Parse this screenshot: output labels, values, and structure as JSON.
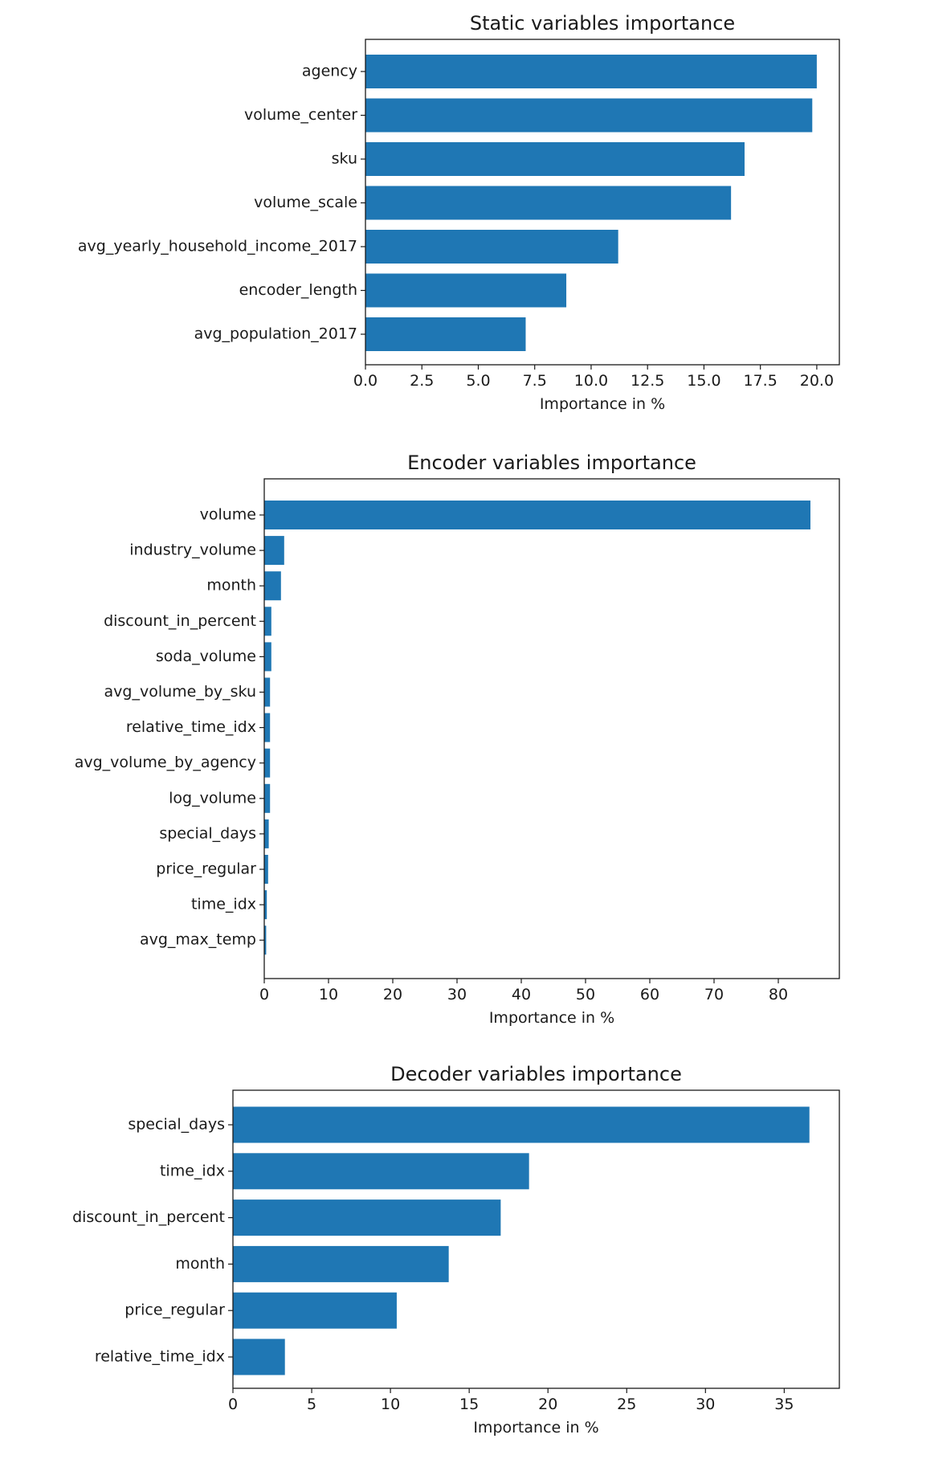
{
  "chart_data": [
    {
      "type": "bar",
      "orientation": "horizontal",
      "title": "Static variables importance",
      "xlabel": "Importance in %",
      "ylabel": "",
      "xlim": [
        0,
        21
      ],
      "xticks": [
        0,
        2.5,
        5,
        7.5,
        10,
        12.5,
        15,
        17.5,
        20
      ],
      "xtick_labels": [
        "0.0",
        "2.5",
        "5.0",
        "7.5",
        "10.0",
        "12.5",
        "15.0",
        "17.5",
        "20.0"
      ],
      "categories": [
        "agency",
        "volume_center",
        "sku",
        "volume_scale",
        "avg_yearly_household_income_2017",
        "encoder_length",
        "avg_population_2017"
      ],
      "values": [
        20.0,
        19.8,
        16.8,
        16.2,
        11.2,
        8.9,
        7.1
      ],
      "color": "#1f77b4",
      "grid": false
    },
    {
      "type": "bar",
      "orientation": "horizontal",
      "title": "Encoder variables importance",
      "xlabel": "Importance in %",
      "ylabel": "",
      "xlim": [
        0,
        89.5
      ],
      "xticks": [
        0,
        10,
        20,
        30,
        40,
        50,
        60,
        70,
        80
      ],
      "xtick_labels": [
        "0",
        "10",
        "20",
        "30",
        "40",
        "50",
        "60",
        "70",
        "80"
      ],
      "categories": [
        "volume",
        "industry_volume",
        "month",
        "discount_in_percent",
        "soda_volume",
        "avg_volume_by_sku",
        "relative_time_idx",
        "avg_volume_by_agency",
        "log_volume",
        "special_days",
        "price_regular",
        "time_idx",
        "avg_max_temp"
      ],
      "values": [
        85.0,
        3.1,
        2.6,
        1.1,
        1.1,
        0.9,
        0.9,
        0.9,
        0.9,
        0.7,
        0.6,
        0.4,
        0.3
      ],
      "color": "#1f77b4",
      "grid": false
    },
    {
      "type": "bar",
      "orientation": "horizontal",
      "title": "Decoder variables importance",
      "xlabel": "Importance in %",
      "ylabel": "",
      "xlim": [
        0,
        38.5
      ],
      "xticks": [
        0,
        5,
        10,
        15,
        20,
        25,
        30,
        35
      ],
      "xtick_labels": [
        "0",
        "5",
        "10",
        "15",
        "20",
        "25",
        "30",
        "35"
      ],
      "categories": [
        "special_days",
        "time_idx",
        "discount_in_percent",
        "month",
        "price_regular",
        "relative_time_idx"
      ],
      "values": [
        36.6,
        18.8,
        17.0,
        13.7,
        10.4,
        3.3
      ],
      "color": "#1f77b4",
      "grid": false
    }
  ]
}
